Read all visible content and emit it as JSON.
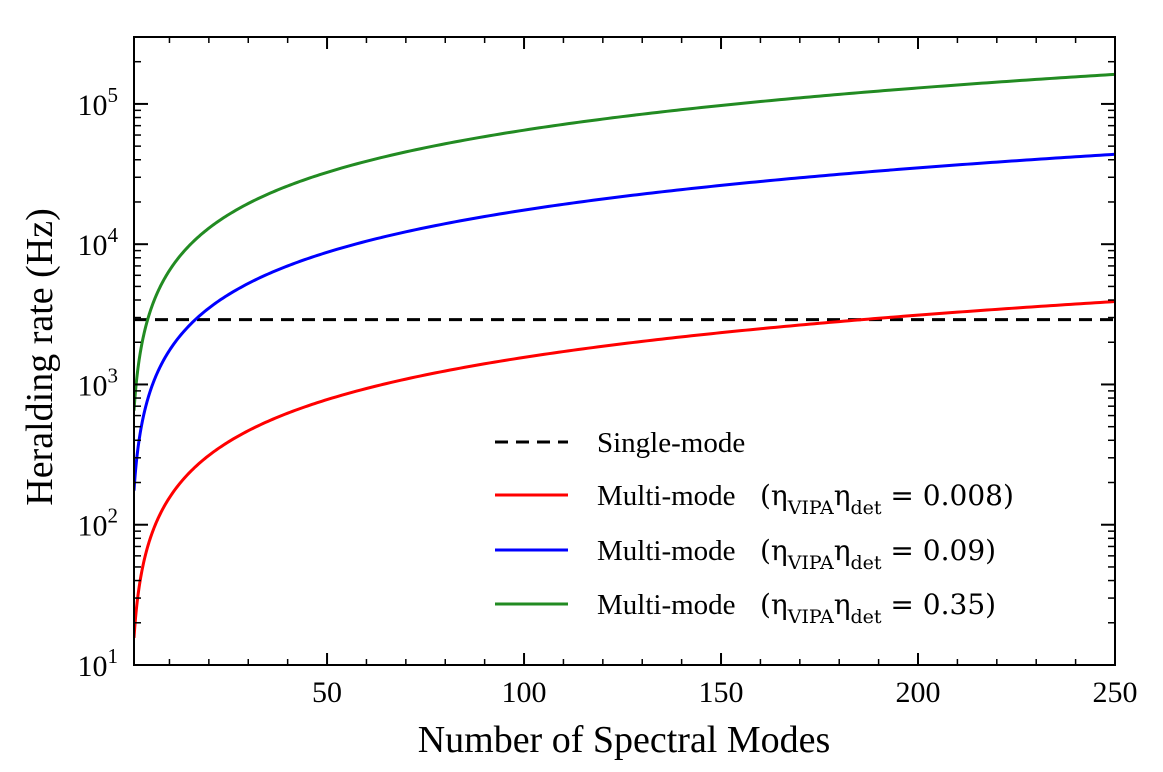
{
  "chart_data": {
    "type": "line",
    "xlabel": "Number of Spectral Modes",
    "ylabel": "Heralding rate (Hz)",
    "yscale": "log",
    "xlim": [
      1,
      250
    ],
    "ylim": [
      10,
      300000
    ],
    "x_ticks": [
      {
        "value": 50,
        "label": "50"
      },
      {
        "value": 100,
        "label": "100"
      },
      {
        "value": 150,
        "label": "150"
      },
      {
        "value": 200,
        "label": "200"
      },
      {
        "value": 250,
        "label": "250"
      }
    ],
    "y_ticks": [
      {
        "value": 10,
        "base": "10",
        "exp": "1"
      },
      {
        "value": 100,
        "base": "10",
        "exp": "2"
      },
      {
        "value": 1000,
        "base": "10",
        "exp": "3"
      },
      {
        "value": 10000,
        "base": "10",
        "exp": "4"
      },
      {
        "value": 100000,
        "base": "10",
        "exp": "5"
      }
    ],
    "legend_position": "bottom-right",
    "series": [
      {
        "name": "Single-mode",
        "label": "Single-mode",
        "color": "#000000",
        "style": "dashed",
        "x": [
          1,
          250
        ],
        "y": [
          2900,
          2900
        ]
      },
      {
        "name": "Multi-mode (ηVIPAηdet = 0.008)",
        "label": "Multi-mode",
        "eta_value": "0.008",
        "color": "#ff0000",
        "style": "solid",
        "x": [
          1,
          5,
          10,
          25,
          50,
          100,
          150,
          200,
          250
        ],
        "y": [
          15.6,
          78,
          156,
          390,
          780,
          1560,
          2340,
          3120,
          3900
        ]
      },
      {
        "name": "Multi-mode (ηVIPAηdet = 0.09)",
        "label": "Multi-mode",
        "eta_value": "0.09",
        "color": "#0000ff",
        "style": "solid",
        "x": [
          1,
          5,
          10,
          25,
          50,
          100,
          150,
          200,
          250
        ],
        "y": [
          175,
          875,
          1750,
          4375,
          8750,
          17500,
          26250,
          35000,
          43750
        ]
      },
      {
        "name": "Multi-mode (ηVIPAηdet = 0.35)",
        "label": "Multi-mode",
        "eta_value": "0.35",
        "color": "#228b22",
        "style": "solid",
        "x": [
          1,
          5,
          10,
          25,
          50,
          100,
          150,
          200,
          250
        ],
        "y": [
          650,
          3250,
          6500,
          16250,
          32500,
          65000,
          97500,
          130000,
          162500
        ]
      }
    ],
    "legend_math": {
      "eta": "η",
      "sub_vipa": "VIPA",
      "sub_det": "det",
      "open": "(",
      "equals": " = ",
      "close": ")"
    }
  }
}
